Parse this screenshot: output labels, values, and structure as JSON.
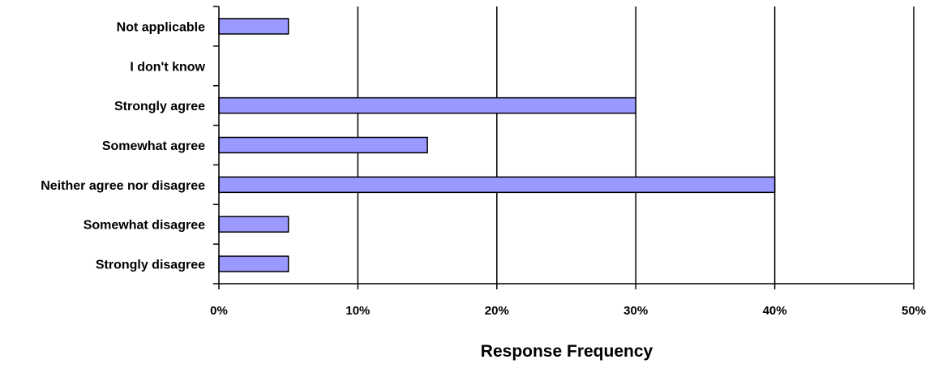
{
  "chart_data": {
    "type": "bar",
    "orientation": "horizontal",
    "categories": [
      "Not applicable",
      "I don't know",
      "Strongly agree",
      "Somewhat agree",
      "Neither agree nor disagree",
      "Somewhat disagree",
      "Strongly disagree"
    ],
    "values": [
      5,
      0,
      30,
      15,
      40,
      5,
      5
    ],
    "xlabel": "Response Frequency",
    "ylabel": "",
    "xlim": [
      0,
      50
    ],
    "x_ticks": [
      "0%",
      "10%",
      "20%",
      "30%",
      "40%",
      "50%"
    ],
    "grid": "vertical",
    "bar_color": "#9999ff",
    "bar_stroke": "#000000"
  }
}
